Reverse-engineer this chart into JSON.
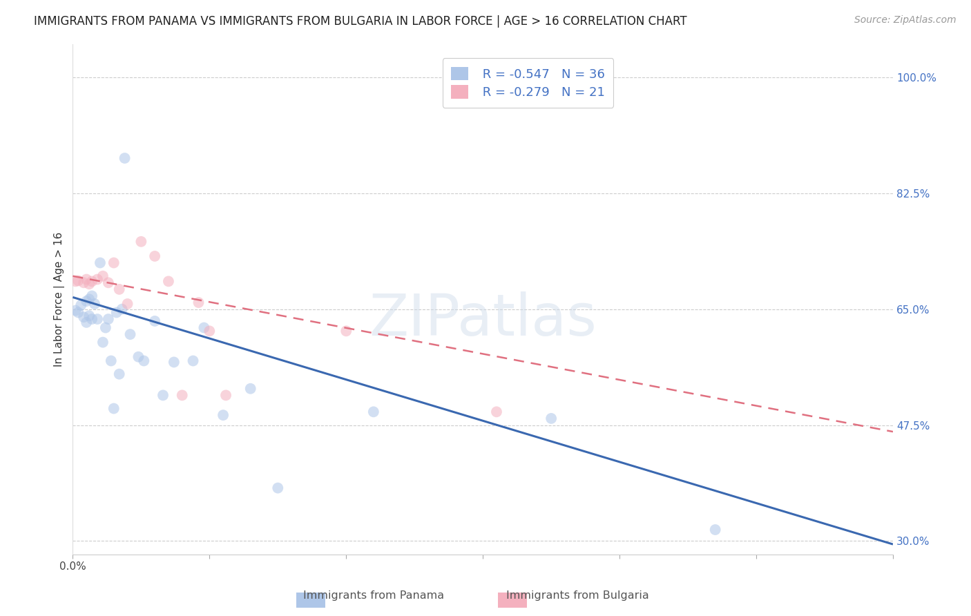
{
  "title": "IMMIGRANTS FROM PANAMA VS IMMIGRANTS FROM BULGARIA IN LABOR FORCE | AGE > 16 CORRELATION CHART",
  "source": "Source: ZipAtlas.com",
  "ylabel": "In Labor Force | Age > 16",
  "xlim": [
    0.0,
    0.3
  ],
  "ylim": [
    0.28,
    1.05
  ],
  "yticks_right": [
    1.0,
    0.825,
    0.65,
    0.475,
    0.3
  ],
  "ytick_right_labels": [
    "100.0%",
    "82.5%",
    "65.0%",
    "47.5%",
    "30.0%"
  ],
  "grid_color": "#cccccc",
  "background_color": "#ffffff",
  "panama_color": "#aec6e8",
  "panama_line_color": "#3a68b0",
  "bulgaria_color": "#f4b0be",
  "bulgaria_line_color": "#e07080",
  "legend_R_panama": "R = -0.547",
  "legend_N_panama": "N = 36",
  "legend_R_bulgaria": "R = -0.279",
  "legend_N_bulgaria": "N = 21",
  "panama_x": [
    0.001,
    0.002,
    0.003,
    0.004,
    0.005,
    0.005,
    0.006,
    0.006,
    0.007,
    0.007,
    0.008,
    0.009,
    0.01,
    0.011,
    0.012,
    0.013,
    0.014,
    0.015,
    0.016,
    0.017,
    0.018,
    0.019,
    0.021,
    0.024,
    0.026,
    0.03,
    0.033,
    0.037,
    0.044,
    0.048,
    0.055,
    0.065,
    0.075,
    0.11,
    0.175,
    0.235
  ],
  "panama_y": [
    0.648,
    0.645,
    0.656,
    0.638,
    0.662,
    0.63,
    0.665,
    0.64,
    0.67,
    0.635,
    0.658,
    0.635,
    0.72,
    0.6,
    0.622,
    0.635,
    0.572,
    0.5,
    0.645,
    0.552,
    0.65,
    0.878,
    0.612,
    0.578,
    0.572,
    0.632,
    0.52,
    0.57,
    0.572,
    0.622,
    0.49,
    0.53,
    0.38,
    0.495,
    0.485,
    0.317
  ],
  "bulgaria_x": [
    0.001,
    0.002,
    0.004,
    0.005,
    0.006,
    0.007,
    0.009,
    0.011,
    0.013,
    0.015,
    0.017,
    0.02,
    0.025,
    0.03,
    0.035,
    0.04,
    0.046,
    0.05,
    0.056,
    0.1,
    0.155
  ],
  "bulgaria_y": [
    0.692,
    0.693,
    0.69,
    0.695,
    0.688,
    0.692,
    0.695,
    0.7,
    0.69,
    0.72,
    0.68,
    0.658,
    0.752,
    0.73,
    0.692,
    0.52,
    0.66,
    0.617,
    0.52,
    0.617,
    0.495
  ],
  "panama_trendline_x": [
    0.0,
    0.3
  ],
  "panama_trendline_y": [
    0.668,
    0.295
  ],
  "bulgaria_trendline_x": [
    0.0,
    0.3
  ],
  "bulgaria_trendline_y": [
    0.7,
    0.465
  ],
  "watermark_text": "ZIPatlas",
  "marker_size": 130,
  "alpha": 0.55,
  "title_fontsize": 12,
  "source_fontsize": 10,
  "tick_fontsize": 11,
  "legend_fontsize": 13
}
